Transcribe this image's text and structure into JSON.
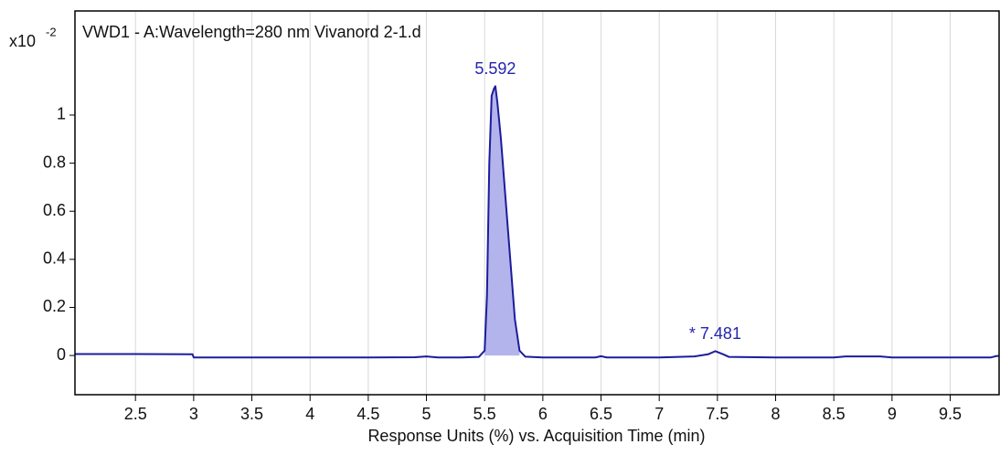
{
  "chart_data": {
    "type": "line",
    "title": "VWD1 - A:Wavelength=280 nm Vivanord 2-1.d",
    "y_scale_base": "x10",
    "y_scale_exponent": "-2",
    "x_label": "Response Units (%) vs. Acquisition Time (min)",
    "xlim": [
      1.98,
      9.92
    ],
    "xticks": [
      2.5,
      3,
      3.5,
      4,
      4.5,
      5,
      5.5,
      6,
      6.5,
      7,
      7.5,
      8,
      8.5,
      9,
      9.5
    ],
    "ylim": [
      -0.163,
      1.433
    ],
    "yticks": [
      0,
      0.2,
      0.4,
      0.6,
      0.8,
      1
    ],
    "grid": true,
    "series": [
      {
        "color": "#1c1c9c",
        "x": [
          1.98,
          2.5,
          2.99,
          3.0,
          3.5,
          4.0,
          4.5,
          4.9,
          5.0,
          5.1,
          5.3,
          5.45,
          5.5,
          5.52,
          5.54,
          5.56,
          5.58,
          5.592,
          5.61,
          5.64,
          5.68,
          5.72,
          5.76,
          5.8,
          5.85,
          6.0,
          6.45,
          6.5,
          6.55,
          7.0,
          7.3,
          7.42,
          7.481,
          7.55,
          7.6,
          8.0,
          8.5,
          8.6,
          8.9,
          9.0,
          9.5,
          9.85,
          9.9,
          9.92
        ],
        "values": [
          0.006,
          0.006,
          0.005,
          -0.008,
          -0.008,
          -0.008,
          -0.008,
          -0.007,
          -0.004,
          -0.008,
          -0.008,
          -0.006,
          0.02,
          0.25,
          0.8,
          1.08,
          1.11,
          1.12,
          1.05,
          0.9,
          0.65,
          0.4,
          0.15,
          0.02,
          -0.005,
          -0.008,
          -0.008,
          -0.003,
          -0.008,
          -0.008,
          -0.004,
          0.005,
          0.018,
          0.005,
          -0.006,
          -0.008,
          -0.008,
          -0.004,
          -0.004,
          -0.008,
          -0.008,
          -0.008,
          -0.002,
          -0.002
        ]
      }
    ],
    "shaded_peaks": [
      {
        "start": 5.5,
        "end": 5.8,
        "color": "#b4b4ec"
      }
    ],
    "annotations": [
      {
        "text": "5.592",
        "x": 5.592,
        "y": 1.12
      },
      {
        "text": "* 7.481",
        "x": 7.481,
        "y": 0.018
      }
    ]
  }
}
